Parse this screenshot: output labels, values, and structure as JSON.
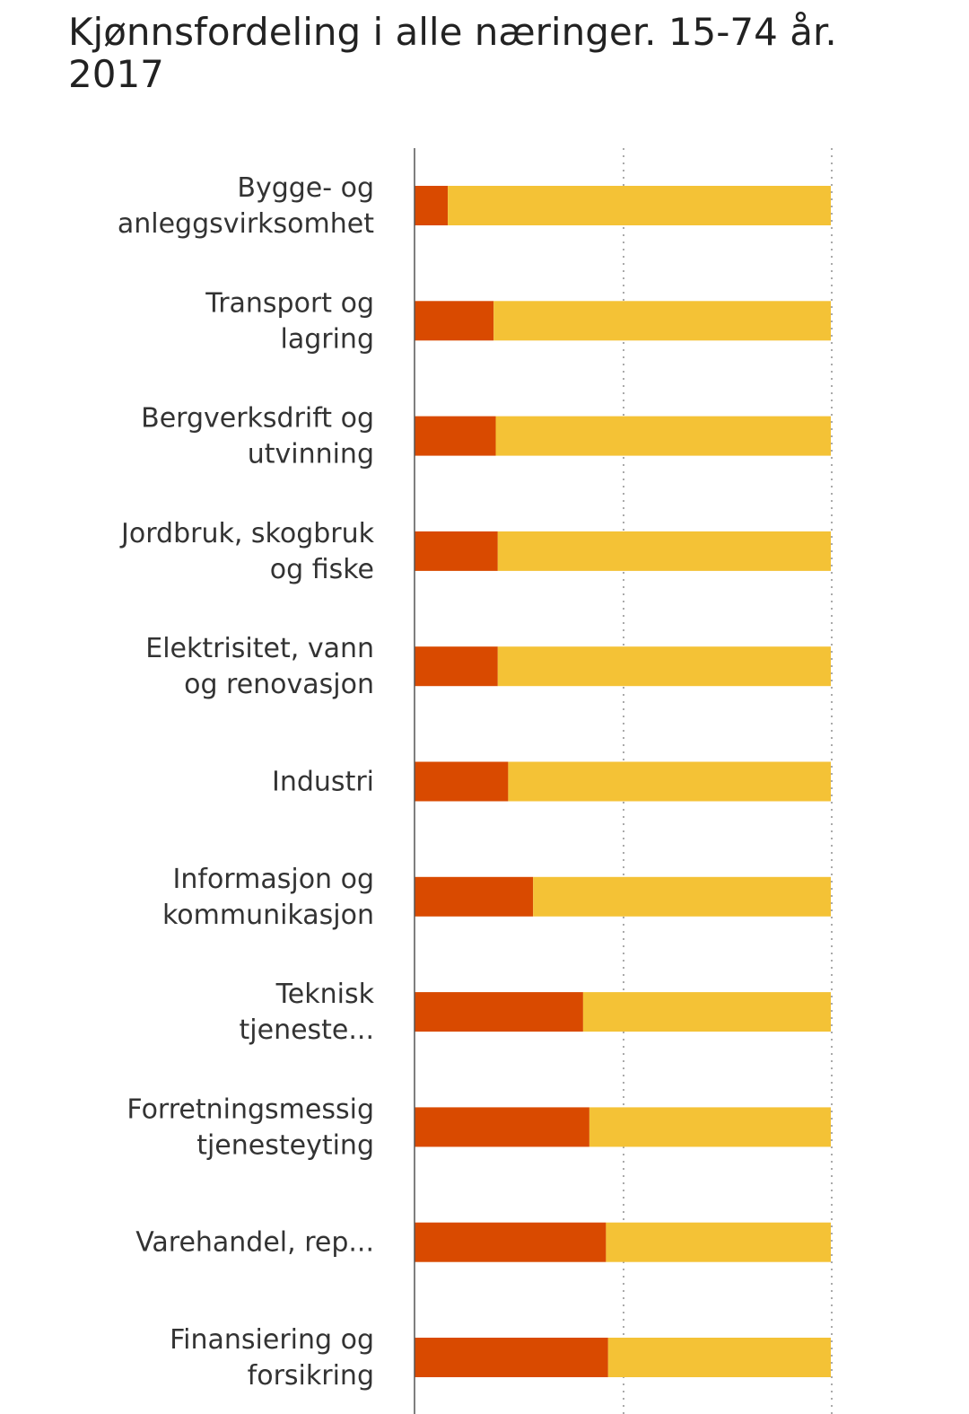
{
  "chart_data": {
    "type": "bar",
    "orientation": "horizontal",
    "stacked": true,
    "title": "Kjønnsfordeling i alle næringer. 15-74 år. 2017",
    "categories": [
      "Bygge- og anleggsvirksomhet",
      "Transport og lagring",
      "Bergverksdrift og utvinning",
      "Jordbruk, skogbruk og fiske",
      "Elektrisitet, vann og renovasjon",
      "Industri",
      "Informasjon og kommunikasjon",
      "Teknisk tjeneste...",
      "Forretningsmessig tjenesteyting",
      "Varehandel, rep...",
      "Finansiering og forsikring"
    ],
    "series": [
      {
        "color": "#D94A00",
        "values": [
          8,
          19,
          19.5,
          20,
          20,
          22.5,
          28.5,
          40.5,
          42,
          46,
          46.5
        ]
      },
      {
        "color": "#F4C236",
        "values": [
          92,
          81,
          80.5,
          80,
          80,
          77.5,
          71.5,
          59.5,
          58,
          54,
          53.5
        ]
      }
    ],
    "xlim": [
      0,
      100
    ],
    "grid": true,
    "legend": "none"
  }
}
